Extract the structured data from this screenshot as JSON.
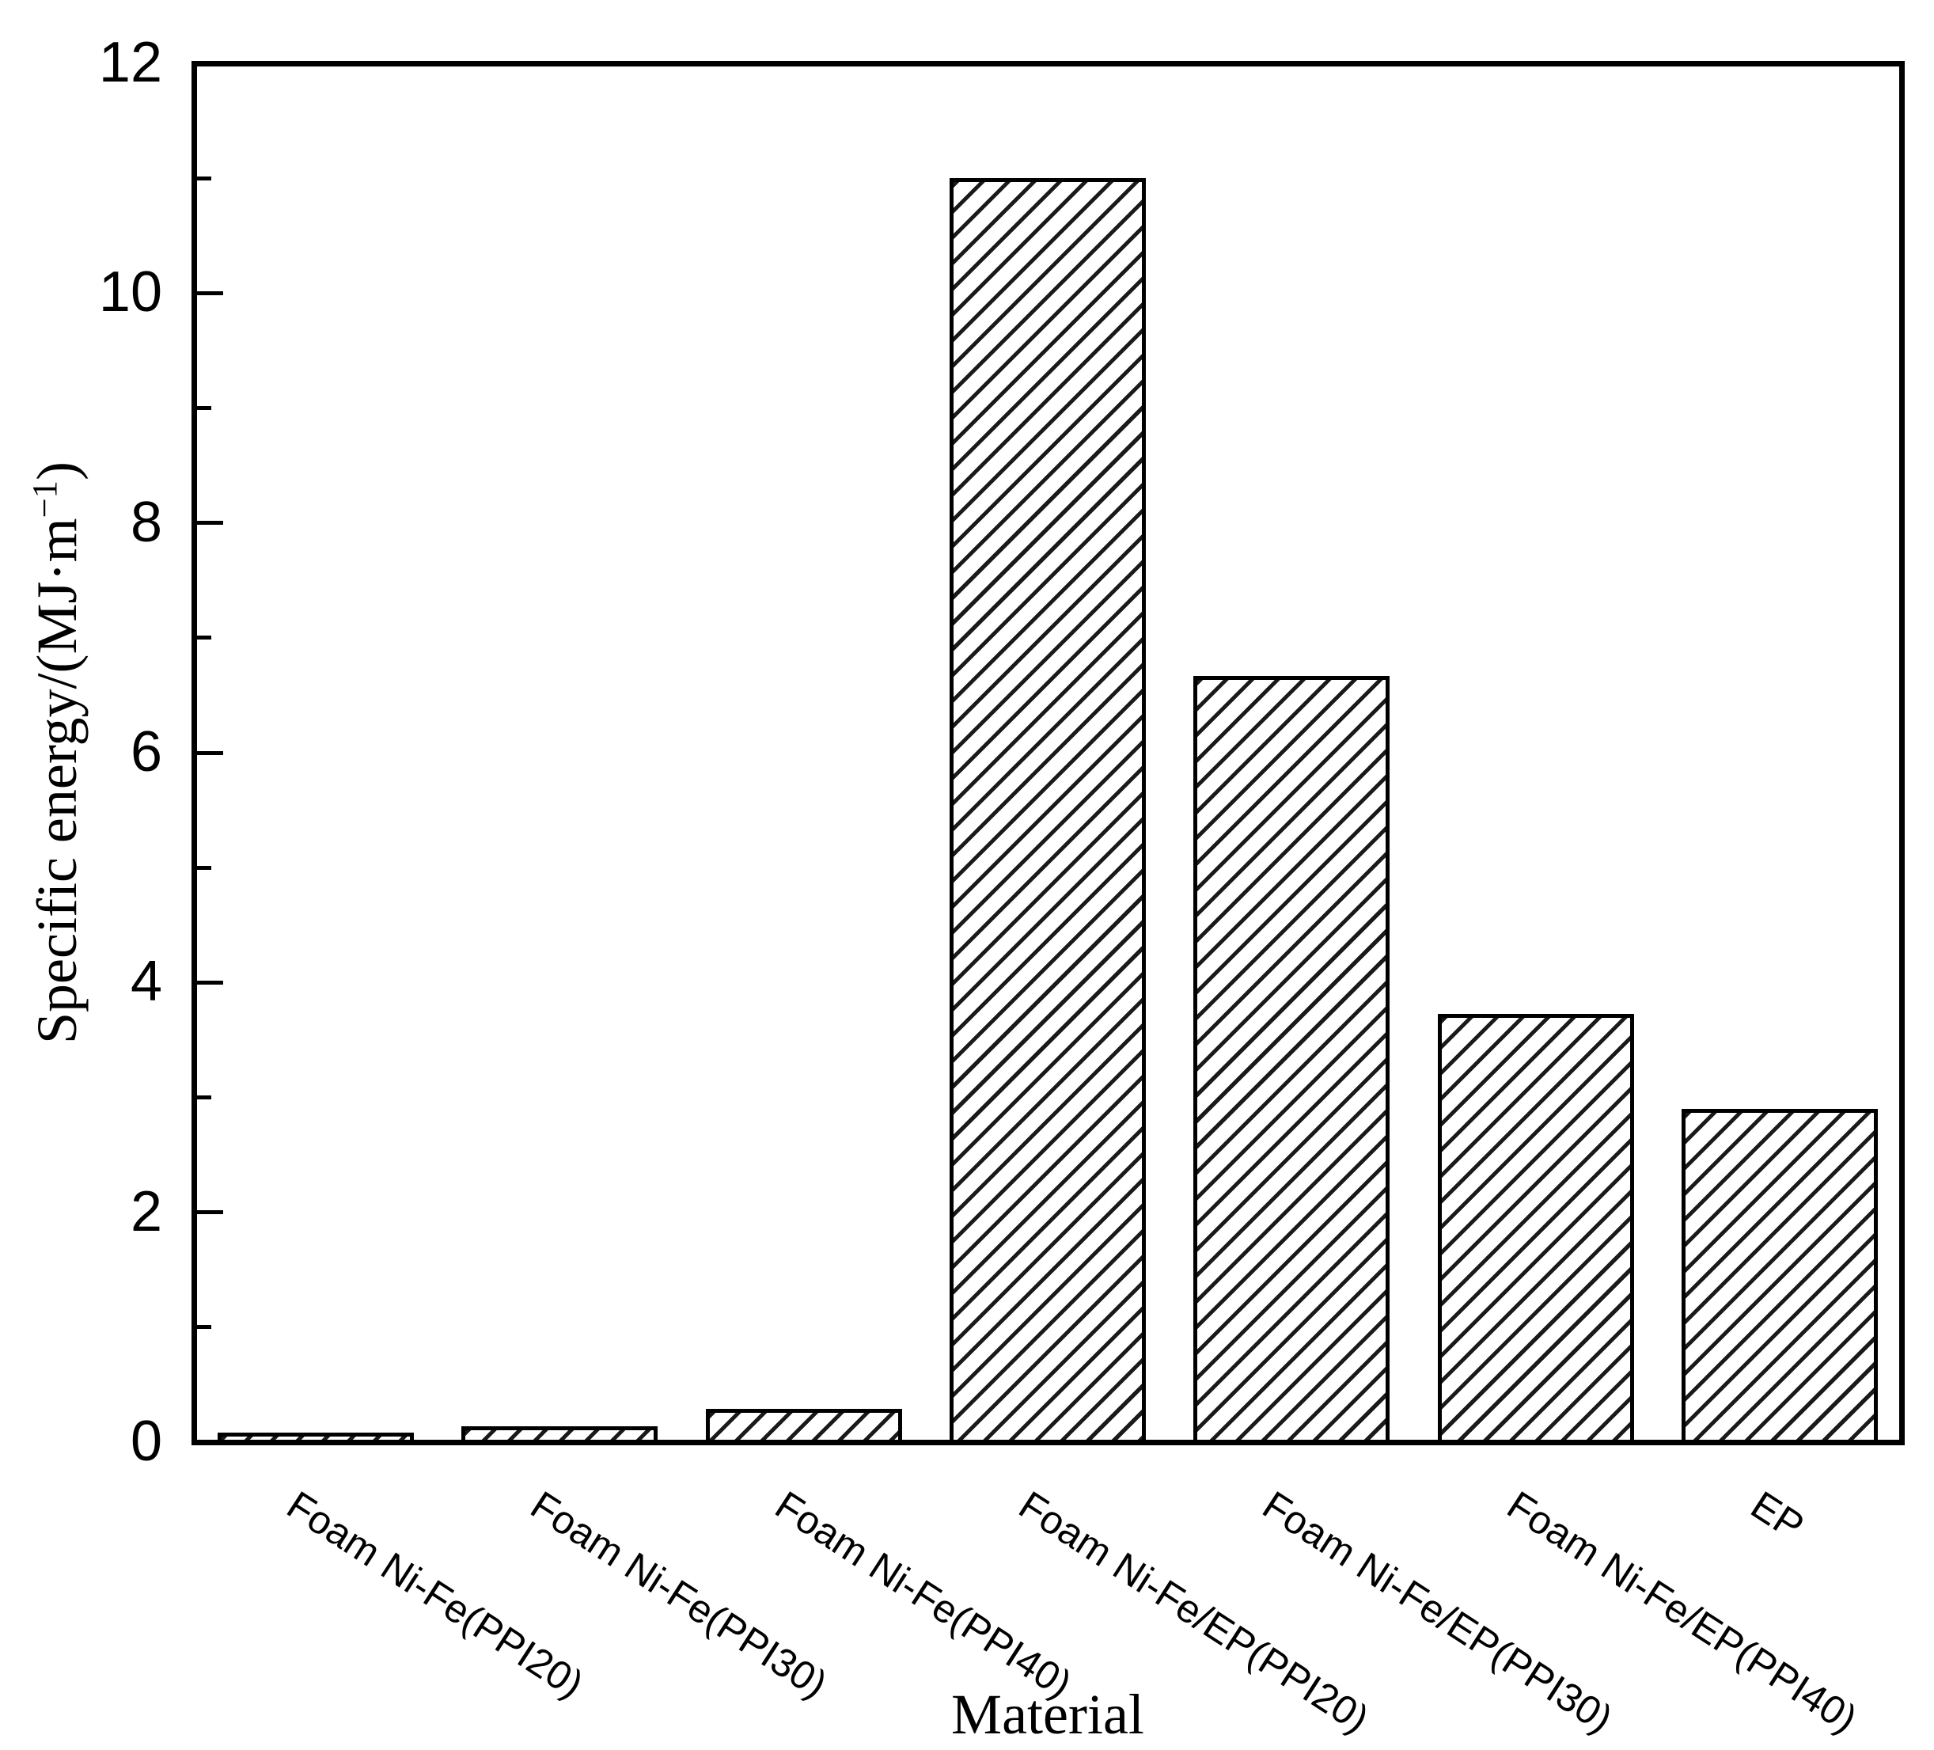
{
  "chart_data": {
    "type": "bar",
    "categories": [
      "Foam Ni-Fe(PPI20)",
      "Foam Ni-Fe(PPI30)",
      "Foam Ni-Fe(PPI40)",
      "Foam Ni-Fe/EP(PPI20)",
      "Foam Ni-Fe/EP(PPI30)",
      "Foam Ni-Fe/EP(PPI40)",
      "EP"
    ],
    "values": [
      0.08,
      0.14,
      0.29,
      11.0,
      6.67,
      3.73,
      2.9
    ],
    "xlabel": "Material",
    "ylabel": "Specific energy/(MJ·m⁻¹)",
    "ylabel_prefix": "Specific energy/(MJ·m",
    "ylabel_sup": "−1",
    "ylabel_suffix": ")",
    "ylim": [
      0,
      12
    ],
    "ytick_major": [
      0,
      2,
      4,
      6,
      8,
      10,
      12
    ],
    "ytick_minor": [
      1,
      3,
      5,
      7,
      9,
      11
    ],
    "grid": false,
    "legend": null,
    "bar_fill": "diagonal-hatch",
    "bar_hatch_color": "#1a1a1a",
    "axis_color": "#000000",
    "background_color": "#ffffff"
  }
}
